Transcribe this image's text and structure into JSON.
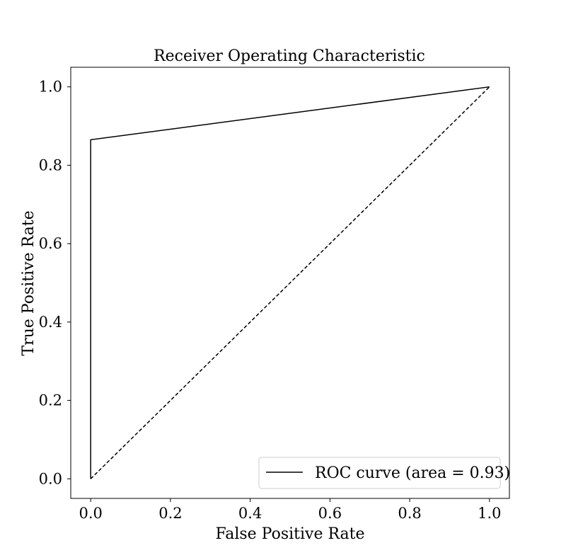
{
  "chart_data": {
    "type": "line",
    "title": "Receiver Operating Characteristic",
    "xlabel": "False Positive Rate",
    "ylabel": "True Positive Rate",
    "xlim": [
      -0.05,
      1.05
    ],
    "ylim": [
      -0.05,
      1.05
    ],
    "xticks": [
      0.0,
      0.2,
      0.4,
      0.6,
      0.8,
      1.0
    ],
    "yticks": [
      0.0,
      0.2,
      0.4,
      0.6,
      0.8,
      1.0
    ],
    "xtick_labels": [
      "0.0",
      "0.2",
      "0.4",
      "0.6",
      "0.8",
      "1.0"
    ],
    "ytick_labels": [
      "0.0",
      "0.2",
      "0.4",
      "0.6",
      "0.8",
      "1.0"
    ],
    "grid": false,
    "legend_position": "lower right",
    "series": [
      {
        "name": "ROC curve (area = 0.93)",
        "style": "solid",
        "color": "#000000",
        "x": [
          0.0,
          0.0,
          1.0
        ],
        "y": [
          0.0,
          0.865,
          1.0
        ]
      },
      {
        "style": "dashed",
        "color": "#000000",
        "x": [
          0.0,
          1.0
        ],
        "y": [
          0.0,
          1.0
        ]
      }
    ]
  }
}
